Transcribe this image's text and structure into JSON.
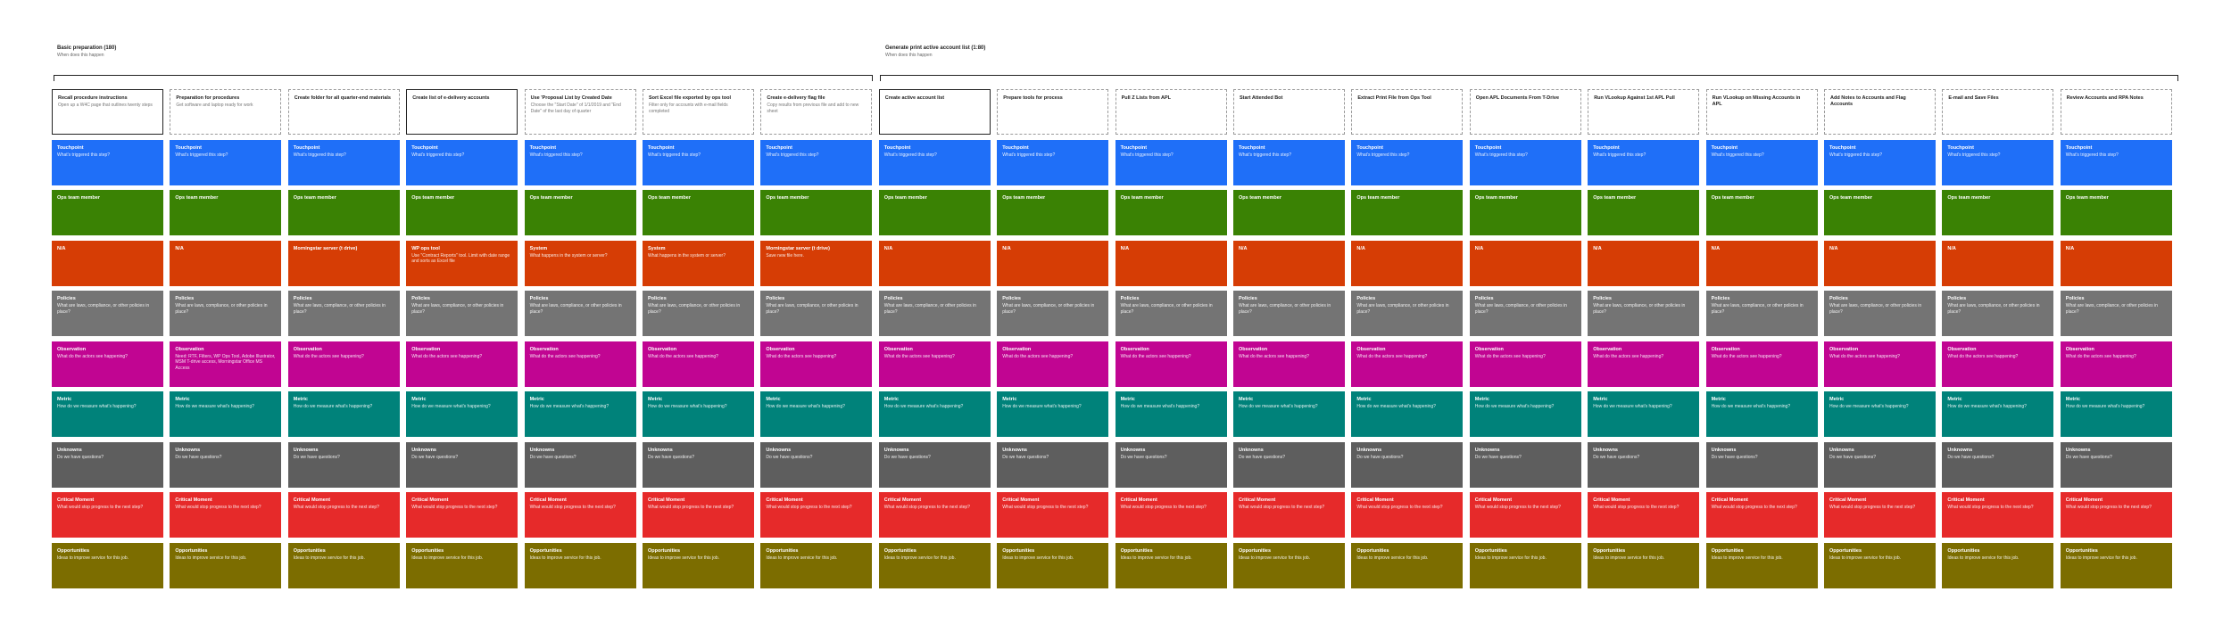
{
  "phases": [
    {
      "title": "Basic preparation (180)",
      "subtitle": "When does this happen"
    },
    {
      "title": "Generate print active account list (1:80)",
      "subtitle": "When does this happen"
    }
  ],
  "phase_split_index": 7,
  "key_steps": [
    0,
    3,
    7
  ],
  "colors": {
    "touchpoint": "#1f6ff8",
    "ops": "#3a8204",
    "na": "#d63d05",
    "policies": "#747474",
    "observation": "#c10592",
    "metric": "#00827a",
    "unknowns": "#5e5e5e",
    "critical": "#e62a2a",
    "opportunities": "#7c6d00"
  },
  "steps": [
    {
      "title": "Recall procedure instructions",
      "desc": "Open up a W4C page that outlines twenty steps"
    },
    {
      "title": "Preparation for procedures",
      "desc": "Get software and laptop ready for work"
    },
    {
      "title": "Create folder for all quarter-end materials",
      "desc": ""
    },
    {
      "title": "Create list of e-delivery accounts",
      "desc": ""
    },
    {
      "title": "Use 'Proposal List by Created Date",
      "desc": "Choose the \"Start Date\" of 1/1/2019 and \"End Date\" of the last day of quarter"
    },
    {
      "title": "Sort Excel file exported by ops tool",
      "desc": "Filter only for accounts with e-mail fields completed"
    },
    {
      "title": "Create e-delivery flag file",
      "desc": "Copy results from previous file and add to new sheet"
    },
    {
      "title": "Create active account list",
      "desc": ""
    },
    {
      "title": "Prepare tools for process",
      "desc": ""
    },
    {
      "title": "Pull Z Lists from APL",
      "desc": ""
    },
    {
      "title": "Start Attended Bot",
      "desc": ""
    },
    {
      "title": "Extract Print File from Ops Tool",
      "desc": ""
    },
    {
      "title": "Open APL Documents From T-Drive",
      "desc": ""
    },
    {
      "title": "Run VLookup Against 1st APL Pull",
      "desc": ""
    },
    {
      "title": "Run VLookup on Missing Accounts in APL",
      "desc": ""
    },
    {
      "title": "Add Notes to Accounts and Flag Accounts",
      "desc": ""
    },
    {
      "title": "E-mail and Save Files",
      "desc": ""
    },
    {
      "title": "Review Accounts and RPA Notes",
      "desc": ""
    }
  ],
  "lanes": [
    {
      "key": "touchpoint",
      "cells": [
        {
          "t": "Touchpoint",
          "d": "What's triggered this step?"
        },
        {
          "t": "Touchpoint",
          "d": "What's triggered this step?"
        },
        {
          "t": "Touchpoint",
          "d": "What's triggered this step?"
        },
        {
          "t": "Touchpoint",
          "d": "What's triggered this step?"
        },
        {
          "t": "Touchpoint",
          "d": "What's triggered this step?"
        },
        {
          "t": "Touchpoint",
          "d": "What's triggered this step?"
        },
        {
          "t": "Touchpoint",
          "d": "What's triggered this step?"
        },
        {
          "t": "Touchpoint",
          "d": "What's triggered this step?"
        },
        {
          "t": "Touchpoint",
          "d": "What's triggered this step?"
        },
        {
          "t": "Touchpoint",
          "d": "What's triggered this step?"
        },
        {
          "t": "Touchpoint",
          "d": "What's triggered this step?"
        },
        {
          "t": "Touchpoint",
          "d": "What's triggered this step?"
        },
        {
          "t": "Touchpoint",
          "d": "What's triggered this step?"
        },
        {
          "t": "Touchpoint",
          "d": "What's triggered this step?"
        },
        {
          "t": "Touchpoint",
          "d": "What's triggered this step?"
        },
        {
          "t": "Touchpoint",
          "d": "What's triggered this step?"
        },
        {
          "t": "Touchpoint",
          "d": "What's triggered this step?"
        },
        {
          "t": "Touchpoint",
          "d": "What's triggered this step?"
        }
      ]
    },
    {
      "key": "ops",
      "cells": [
        {
          "t": "Ops team member",
          "d": ""
        },
        {
          "t": "Ops team member",
          "d": ""
        },
        {
          "t": "Ops team member",
          "d": ""
        },
        {
          "t": "Ops team member",
          "d": ""
        },
        {
          "t": "Ops team member",
          "d": ""
        },
        {
          "t": "Ops team member",
          "d": ""
        },
        {
          "t": "Ops team member",
          "d": ""
        },
        {
          "t": "Ops team member",
          "d": ""
        },
        {
          "t": "Ops team member",
          "d": ""
        },
        {
          "t": "Ops team member",
          "d": ""
        },
        {
          "t": "Ops team member",
          "d": ""
        },
        {
          "t": "Ops team member",
          "d": ""
        },
        {
          "t": "Ops team member",
          "d": ""
        },
        {
          "t": "Ops team member",
          "d": ""
        },
        {
          "t": "Ops team member",
          "d": ""
        },
        {
          "t": "Ops team member",
          "d": ""
        },
        {
          "t": "Ops team member",
          "d": ""
        },
        {
          "t": "Ops team member",
          "d": ""
        }
      ]
    },
    {
      "key": "na",
      "cells": [
        {
          "t": "N/A",
          "d": ""
        },
        {
          "t": "N/A",
          "d": ""
        },
        {
          "t": "Morningstar server (t drive)",
          "d": ""
        },
        {
          "t": "WP ops tool",
          "d": "Use \"Contract Reports\" tool. Limit with date range and sorts as Excel file"
        },
        {
          "t": "System",
          "d": "What happens in the system or server?"
        },
        {
          "t": "System",
          "d": "What happens in the system or server?"
        },
        {
          "t": "Morningstar server (t drive)",
          "d": "Save new file here."
        },
        {
          "t": "N/A",
          "d": ""
        },
        {
          "t": "N/A",
          "d": ""
        },
        {
          "t": "N/A",
          "d": ""
        },
        {
          "t": "N/A",
          "d": ""
        },
        {
          "t": "N/A",
          "d": ""
        },
        {
          "t": "N/A",
          "d": ""
        },
        {
          "t": "N/A",
          "d": ""
        },
        {
          "t": "N/A",
          "d": ""
        },
        {
          "t": "N/A",
          "d": ""
        },
        {
          "t": "N/A",
          "d": ""
        },
        {
          "t": "N/A",
          "d": ""
        }
      ]
    },
    {
      "key": "policies",
      "cells": [
        {
          "t": "Policies",
          "d": "What are laws, compliance, or other policies in place?"
        },
        {
          "t": "Policies",
          "d": "What are laws, compliance, or other policies in place?"
        },
        {
          "t": "Policies",
          "d": "What are laws, compliance, or other policies in place?"
        },
        {
          "t": "Policies",
          "d": "What are laws, compliance, or other policies in place?"
        },
        {
          "t": "Policies",
          "d": "What are laws, compliance, or other policies in place?"
        },
        {
          "t": "Policies",
          "d": "What are laws, compliance, or other policies in place?"
        },
        {
          "t": "Policies",
          "d": "What are laws, compliance, or other policies in place?"
        },
        {
          "t": "Policies",
          "d": "What are laws, compliance, or other policies in place?"
        },
        {
          "t": "Policies",
          "d": "What are laws, compliance, or other policies in place?"
        },
        {
          "t": "Policies",
          "d": "What are laws, compliance, or other policies in place?"
        },
        {
          "t": "Policies",
          "d": "What are laws, compliance, or other policies in place?"
        },
        {
          "t": "Policies",
          "d": "What are laws, compliance, or other policies in place?"
        },
        {
          "t": "Policies",
          "d": "What are laws, compliance, or other policies in place?"
        },
        {
          "t": "Policies",
          "d": "What are laws, compliance, or other policies in place?"
        },
        {
          "t": "Policies",
          "d": "What are laws, compliance, or other policies in place?"
        },
        {
          "t": "Policies",
          "d": "What are laws, compliance, or other policies in place?"
        },
        {
          "t": "Policies",
          "d": "What are laws, compliance, or other policies in place?"
        },
        {
          "t": "Policies",
          "d": "What are laws, compliance, or other policies in place?"
        }
      ]
    },
    {
      "key": "observation",
      "cells": [
        {
          "t": "Observation",
          "d": "What do the actors see happening?"
        },
        {
          "t": "Observation",
          "d": "Need: RTF, Filters, WP Ops Tool, Adobe Illustrator, MSM T-drive access, Morningstar Office MS Access"
        },
        {
          "t": "Observation",
          "d": "What do the actors see happening?"
        },
        {
          "t": "Observation",
          "d": "What do the actors see happening?"
        },
        {
          "t": "Observation",
          "d": "What do the actors see happening?"
        },
        {
          "t": "Observation",
          "d": "What do the actors see happening?"
        },
        {
          "t": "Observation",
          "d": "What do the actors see happening?"
        },
        {
          "t": "Observation",
          "d": "What do the actors see happening?"
        },
        {
          "t": "Observation",
          "d": "What do the actors see happening?"
        },
        {
          "t": "Observation",
          "d": "What do the actors see happening?"
        },
        {
          "t": "Observation",
          "d": "What do the actors see happening?"
        },
        {
          "t": "Observation",
          "d": "What do the actors see happening?"
        },
        {
          "t": "Observation",
          "d": "What do the actors see happening?"
        },
        {
          "t": "Observation",
          "d": "What do the actors see happening?"
        },
        {
          "t": "Observation",
          "d": "What do the actors see happening?"
        },
        {
          "t": "Observation",
          "d": "What do the actors see happening?"
        },
        {
          "t": "Observation",
          "d": "What do the actors see happening?"
        },
        {
          "t": "Observation",
          "d": "What do the actors see happening?"
        }
      ]
    },
    {
      "key": "metric",
      "cells": [
        {
          "t": "Metric",
          "d": "How do we measure what's happening?"
        },
        {
          "t": "Metric",
          "d": "How do we measure what's happening?"
        },
        {
          "t": "Metric",
          "d": "How do we measure what's happening?"
        },
        {
          "t": "Metric",
          "d": "How do we measure what's happening?"
        },
        {
          "t": "Metric",
          "d": "How do we measure what's happening?"
        },
        {
          "t": "Metric",
          "d": "How do we measure what's happening?"
        },
        {
          "t": "Metric",
          "d": "How do we measure what's happening?"
        },
        {
          "t": "Metric",
          "d": "How do we measure what's happening?"
        },
        {
          "t": "Metric",
          "d": "How do we measure what's happening?"
        },
        {
          "t": "Metric",
          "d": "How do we measure what's happening?"
        },
        {
          "t": "Metric",
          "d": "How do we measure what's happening?"
        },
        {
          "t": "Metric",
          "d": "How do we measure what's happening?"
        },
        {
          "t": "Metric",
          "d": "How do we measure what's happening?"
        },
        {
          "t": "Metric",
          "d": "How do we measure what's happening?"
        },
        {
          "t": "Metric",
          "d": "How do we measure what's happening?"
        },
        {
          "t": "Metric",
          "d": "How do we measure what's happening?"
        },
        {
          "t": "Metric",
          "d": "How do we measure what's happening?"
        },
        {
          "t": "Metric",
          "d": "How do we measure what's happening?"
        }
      ]
    },
    {
      "key": "unknowns",
      "cells": [
        {
          "t": "Unknowns",
          "d": "Do we have questions?"
        },
        {
          "t": "Unknowns",
          "d": "Do we have questions?"
        },
        {
          "t": "Unknowns",
          "d": "Do we have questions?"
        },
        {
          "t": "Unknowns",
          "d": "Do we have questions?"
        },
        {
          "t": "Unknowns",
          "d": "Do we have questions?"
        },
        {
          "t": "Unknowns",
          "d": "Do we have questions?"
        },
        {
          "t": "Unknowns",
          "d": "Do we have questions?"
        },
        {
          "t": "Unknowns",
          "d": "Do we have questions?"
        },
        {
          "t": "Unknowns",
          "d": "Do we have questions?"
        },
        {
          "t": "Unknowns",
          "d": "Do we have questions?"
        },
        {
          "t": "Unknowns",
          "d": "Do we have questions?"
        },
        {
          "t": "Unknowns",
          "d": "Do we have questions?"
        },
        {
          "t": "Unknowns",
          "d": "Do we have questions?"
        },
        {
          "t": "Unknowns",
          "d": "Do we have questions?"
        },
        {
          "t": "Unknowns",
          "d": "Do we have questions?"
        },
        {
          "t": "Unknowns",
          "d": "Do we have questions?"
        },
        {
          "t": "Unknowns",
          "d": "Do we have questions?"
        },
        {
          "t": "Unknowns",
          "d": "Do we have questions?"
        }
      ]
    },
    {
      "key": "critical",
      "cells": [
        {
          "t": "Critical Moment",
          "d": "What would stop progress to the next step?"
        },
        {
          "t": "Critical Moment",
          "d": "What would stop progress to the next step?"
        },
        {
          "t": "Critical Moment",
          "d": "What would stop progress to the next step?"
        },
        {
          "t": "Critical Moment",
          "d": "What would stop progress to the next step?"
        },
        {
          "t": "Critical Moment",
          "d": "What would stop progress to the next step?"
        },
        {
          "t": "Critical Moment",
          "d": "What would stop progress to the next step?"
        },
        {
          "t": "Critical Moment",
          "d": "What would stop progress to the next step?"
        },
        {
          "t": "Critical Moment",
          "d": "What would stop progress to the next step?"
        },
        {
          "t": "Critical Moment",
          "d": "What would stop progress to the next step?"
        },
        {
          "t": "Critical Moment",
          "d": "What would stop progress to the next step?"
        },
        {
          "t": "Critical Moment",
          "d": "What would stop progress to the next step?"
        },
        {
          "t": "Critical Moment",
          "d": "What would stop progress to the next step?"
        },
        {
          "t": "Critical Moment",
          "d": "What would stop progress to the next step?"
        },
        {
          "t": "Critical Moment",
          "d": "What would stop progress to the next step?"
        },
        {
          "t": "Critical Moment",
          "d": "What would stop progress to the next step?"
        },
        {
          "t": "Critical Moment",
          "d": "What would stop progress to the next step?"
        },
        {
          "t": "Critical Moment",
          "d": "What would stop progress to the next step?"
        },
        {
          "t": "Critical Moment",
          "d": "What would stop progress to the next step?"
        }
      ]
    },
    {
      "key": "opportunities",
      "cells": [
        {
          "t": "Opportunities",
          "d": "Ideas to improve service for this job."
        },
        {
          "t": "Opportunities",
          "d": "Ideas to improve service for this job."
        },
        {
          "t": "Opportunities",
          "d": "Ideas to improve service for this job."
        },
        {
          "t": "Opportunities",
          "d": "Ideas to improve service for this job."
        },
        {
          "t": "Opportunities",
          "d": "Ideas to improve service for this job."
        },
        {
          "t": "Opportunities",
          "d": "Ideas to improve service for this job."
        },
        {
          "t": "Opportunities",
          "d": "Ideas to improve service for this job."
        },
        {
          "t": "Opportunities",
          "d": "Ideas to improve service for this job."
        },
        {
          "t": "Opportunities",
          "d": "Ideas to improve service for this job."
        },
        {
          "t": "Opportunities",
          "d": "Ideas to improve service for this job."
        },
        {
          "t": "Opportunities",
          "d": "Ideas to improve service for this job."
        },
        {
          "t": "Opportunities",
          "d": "Ideas to improve service for this job."
        },
        {
          "t": "Opportunities",
          "d": "Ideas to improve service for this job."
        },
        {
          "t": "Opportunities",
          "d": "Ideas to improve service for this job."
        },
        {
          "t": "Opportunities",
          "d": "Ideas to improve service for this job."
        },
        {
          "t": "Opportunities",
          "d": "Ideas to improve service for this job."
        },
        {
          "t": "Opportunities",
          "d": "Ideas to improve service for this job."
        },
        {
          "t": "Opportunities",
          "d": "Ideas to improve service for this job."
        }
      ]
    }
  ]
}
